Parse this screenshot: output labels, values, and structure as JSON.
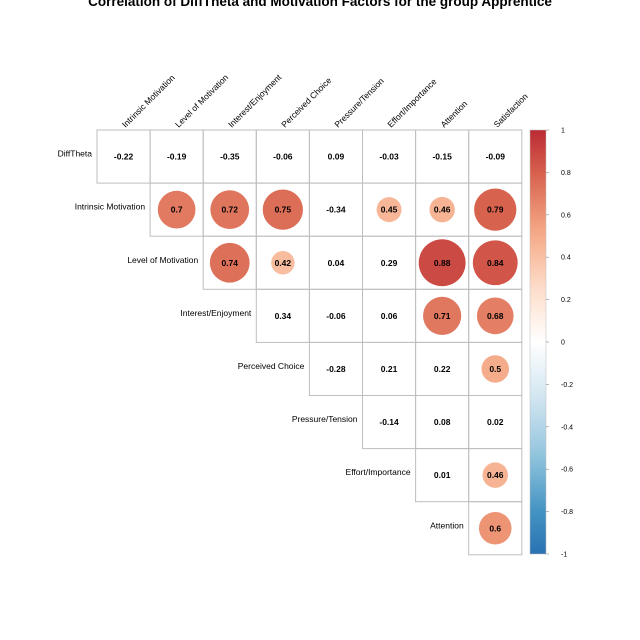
{
  "chart_data": {
    "type": "heatmap",
    "title": "Correlation of DiffTheta and Motivation Factors for the group Apprentice",
    "row_labels": [
      "DiffTheta",
      "Intrinsic Motivation",
      "Level of Motivation",
      "Interest/Enjoyment",
      "Perceived Choice",
      "Pressure/Tension",
      "Effort/Importance",
      "Attention"
    ],
    "col_labels": [
      "Intrinsic Motivation",
      "Level of Motivation",
      "Interest/Enjoyment",
      "Perceived Choice",
      "Pressure/Tension",
      "Effort/Importance",
      "Attention",
      "Satisfaction"
    ],
    "values": [
      [
        -0.22,
        -0.19,
        -0.35,
        -0.06,
        0.09,
        -0.03,
        -0.15,
        -0.09
      ],
      [
        null,
        0.7,
        0.72,
        0.75,
        -0.34,
        0.45,
        0.46,
        0.79
      ],
      [
        null,
        null,
        0.74,
        0.42,
        0.04,
        0.29,
        0.88,
        0.84
      ],
      [
        null,
        null,
        null,
        0.34,
        -0.06,
        0.06,
        0.71,
        0.68
      ],
      [
        null,
        null,
        null,
        null,
        -0.28,
        0.21,
        0.22,
        0.5
      ],
      [
        null,
        null,
        null,
        null,
        null,
        -0.14,
        0.08,
        0.02
      ],
      [
        null,
        null,
        null,
        null,
        null,
        null,
        0.01,
        0.46
      ],
      [
        null,
        null,
        null,
        null,
        null,
        null,
        null,
        0.6
      ]
    ],
    "value_labels": [
      [
        "-0.22",
        "-0.19",
        "-0.35",
        "-0.06",
        "0.09",
        "-0.03",
        "-0.15",
        "-0.09"
      ],
      [
        null,
        "0.7",
        "0.72",
        "0.75",
        "-0.34",
        "0.45",
        "0.46",
        "0.79"
      ],
      [
        null,
        null,
        "0.74",
        "0.42",
        "0.04",
        "0.29",
        "0.88",
        "0.84"
      ],
      [
        null,
        null,
        null,
        "0.34",
        "-0.06",
        "0.06",
        "0.71",
        "0.68"
      ],
      [
        null,
        null,
        null,
        null,
        "-0.28",
        "0.21",
        "0.22",
        "0.5"
      ],
      [
        null,
        null,
        null,
        null,
        null,
        "-0.14",
        "0.08",
        "0.02"
      ],
      [
        null,
        null,
        null,
        null,
        null,
        null,
        "0.01",
        "0.46"
      ],
      [
        null,
        null,
        null,
        null,
        null,
        null,
        null,
        "0.6"
      ]
    ],
    "circle_threshold": 0.4,
    "colorbar": {
      "range": [
        -1,
        1
      ],
      "ticks": [
        "1",
        "0.8",
        "0.6",
        "0.4",
        "0.2",
        "0",
        "-0.2",
        "-0.4",
        "-0.6",
        "-0.8",
        "-1"
      ],
      "colors": [
        "#67001F",
        "#B2182B",
        "#D6604D",
        "#F4A582",
        "#FDDBC7",
        "#FFFFFF",
        "#D1E5F0",
        "#92C5DE",
        "#4393C3",
        "#2166AC",
        "#053061"
      ]
    }
  }
}
